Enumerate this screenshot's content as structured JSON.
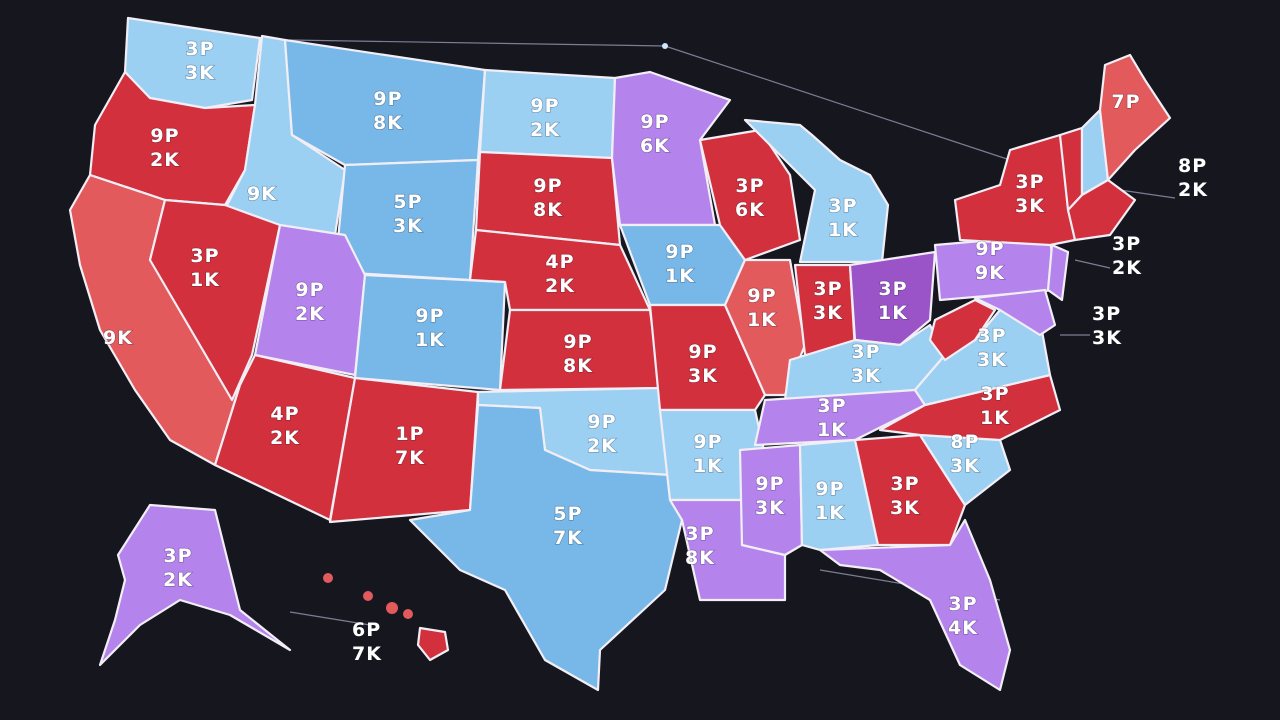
{
  "colors": {
    "background": "#16161f",
    "red": "#d2303c",
    "salmon": "#e25a5c",
    "blue": "#78b8e8",
    "light_blue": "#9cd0f2",
    "purple": "#b484ec",
    "magenta": "#9a54c8"
  },
  "states": [
    {
      "id": "wa",
      "color": "light_blue",
      "l1": "3P",
      "l2": "3K"
    },
    {
      "id": "or",
      "color": "red",
      "l1": "9P",
      "l2": "2K"
    },
    {
      "id": "ca",
      "color": "salmon",
      "l1": "",
      "l2": "9K"
    },
    {
      "id": "id",
      "color": "light_blue",
      "l1": "9K",
      "l2": ""
    },
    {
      "id": "nv",
      "color": "red",
      "l1": "3P",
      "l2": "1K"
    },
    {
      "id": "mt",
      "color": "blue",
      "l1": "9P",
      "l2": "8K"
    },
    {
      "id": "wy",
      "color": "blue",
      "l1": "5P",
      "l2": "3K"
    },
    {
      "id": "ut",
      "color": "purple",
      "l1": "9P",
      "l2": "2K"
    },
    {
      "id": "co",
      "color": "blue",
      "l1": "9P",
      "l2": "1K"
    },
    {
      "id": "az",
      "color": "red",
      "l1": "4P",
      "l2": "2K"
    },
    {
      "id": "nm",
      "color": "red",
      "l1": "1P",
      "l2": "7K"
    },
    {
      "id": "nd",
      "color": "light_blue",
      "l1": "9P",
      "l2": "2K"
    },
    {
      "id": "sd",
      "color": "red",
      "l1": "9P",
      "l2": "8K"
    },
    {
      "id": "ne",
      "color": "red",
      "l1": "4P",
      "l2": "2K"
    },
    {
      "id": "ks",
      "color": "red",
      "l1": "9P",
      "l2": "8K"
    },
    {
      "id": "ok",
      "color": "light_blue",
      "l1": "9P",
      "l2": "2K"
    },
    {
      "id": "tx",
      "color": "blue",
      "l1": "5P",
      "l2": "7K"
    },
    {
      "id": "mn",
      "color": "purple",
      "l1": "9P",
      "l2": "6K"
    },
    {
      "id": "ia",
      "color": "blue",
      "l1": "9P",
      "l2": "1K"
    },
    {
      "id": "mo",
      "color": "red",
      "l1": "9P",
      "l2": "3K"
    },
    {
      "id": "ar",
      "color": "light_blue",
      "l1": "9P",
      "l2": "1K"
    },
    {
      "id": "la",
      "color": "purple",
      "l1": "3P",
      "l2": "8K"
    },
    {
      "id": "wi",
      "color": "red",
      "l1": "3P",
      "l2": "6K"
    },
    {
      "id": "il",
      "color": "salmon",
      "l1": "9P",
      "l2": "1K"
    },
    {
      "id": "mi",
      "color": "light_blue",
      "l1": "3P",
      "l2": "1K"
    },
    {
      "id": "in",
      "color": "red",
      "l1": "3P",
      "l2": "3K"
    },
    {
      "id": "oh",
      "color": "magenta",
      "l1": "3P",
      "l2": "1K"
    },
    {
      "id": "ky",
      "color": "light_blue",
      "l1": "3P",
      "l2": "3K"
    },
    {
      "id": "tn",
      "color": "purple",
      "l1": "3P",
      "l2": "1K"
    },
    {
      "id": "ms",
      "color": "purple",
      "l1": "9P",
      "l2": "3K"
    },
    {
      "id": "al",
      "color": "light_blue",
      "l1": "9P",
      "l2": "1K"
    },
    {
      "id": "ga",
      "color": "red",
      "l1": "3P",
      "l2": "3K"
    },
    {
      "id": "fl",
      "color": "purple",
      "l1": "3P",
      "l2": "4K"
    },
    {
      "id": "sc",
      "color": "light_blue",
      "l1": "8P",
      "l2": "3K"
    },
    {
      "id": "nc",
      "color": "red",
      "l1": "3P",
      "l2": "1K"
    },
    {
      "id": "va",
      "color": "light_blue",
      "l1": "3P",
      "l2": "3K"
    },
    {
      "id": "wv",
      "color": "red",
      "l1": "",
      "l2": ""
    },
    {
      "id": "pa",
      "color": "purple",
      "l1": "9P",
      "l2": "9K"
    },
    {
      "id": "ny",
      "color": "red",
      "l1": "3P",
      "l2": "3K"
    },
    {
      "id": "me",
      "color": "salmon",
      "l1": "7P",
      "l2": ""
    },
    {
      "id": "vt",
      "color": "red",
      "l1": "",
      "l2": ""
    },
    {
      "id": "nh",
      "color": "light_blue",
      "l1": "",
      "l2": ""
    },
    {
      "id": "ma",
      "color": "red",
      "l1": "",
      "l2": ""
    },
    {
      "id": "nj",
      "color": "purple",
      "l1": "",
      "l2": ""
    },
    {
      "id": "md",
      "color": "purple",
      "l1": "",
      "l2": ""
    },
    {
      "id": "ak",
      "color": "purple",
      "l1": "3P",
      "l2": "2K"
    },
    {
      "id": "hi",
      "color": "red",
      "l1": "",
      "l2": ""
    }
  ],
  "callouts": [
    {
      "id": "ne_new_england",
      "l1": "8P",
      "l2": "2K"
    },
    {
      "id": "nj_coast",
      "l1": "3P",
      "l2": "2K"
    },
    {
      "id": "md_coast",
      "l1": "3P",
      "l2": "3K"
    },
    {
      "id": "hawaii",
      "l1": "6P",
      "l2": "7K"
    }
  ]
}
